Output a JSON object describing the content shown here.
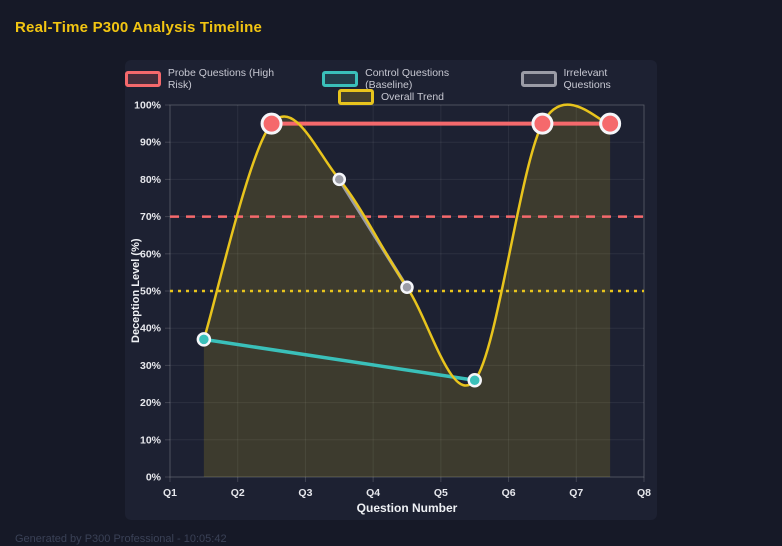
{
  "page": {
    "title": "Real-Time P300 Analysis Timeline",
    "footer": "Generated by P300 Professional - 10:05:42"
  },
  "colors": {
    "background": "#161927",
    "panel": "#1d2132",
    "title": "#f2c512",
    "probe_red": "#f5696c",
    "control_teal": "#3ac0ba",
    "irrelevant_gray": "#9b9ca6",
    "trend_yellow": "#e8c41d",
    "point_border": "#f5f6fa",
    "grid": "rgba(255,255,255,0.07)",
    "plot_border": "rgba(255,255,255,0.16)",
    "tick_label": "#e6e7ec"
  },
  "chart_data": {
    "type": "line",
    "title": "Real-Time P300 Analysis Timeline",
    "x": {
      "label": "Question Number",
      "categories": [
        "Q1",
        "Q2",
        "Q3",
        "Q4",
        "Q5",
        "Q6",
        "Q7",
        "Q8"
      ],
      "min": 1,
      "max": 8
    },
    "y": {
      "label": "Deception Level (%)",
      "min": 0,
      "max": 100,
      "tick_step": 10,
      "tick_suffix": "%"
    },
    "grid": true,
    "legend": {
      "position": "top",
      "rows": [
        [
          "Probe Questions (High Risk)",
          "Control Questions (Baseline)",
          "Irrelevant Questions"
        ],
        [
          "Overall Trend"
        ]
      ]
    },
    "series": [
      {
        "name": "Probe Questions (High Risk)",
        "color": "#f5696c",
        "line_width": 4,
        "point_radius": 9.5,
        "smooth": false,
        "points": [
          [
            2.5,
            95
          ],
          [
            6.5,
            95
          ],
          [
            7.5,
            95
          ]
        ]
      },
      {
        "name": "Control Questions (Baseline)",
        "color": "#3ac0ba",
        "line_width": 3.5,
        "point_radius": 6,
        "smooth": false,
        "points": [
          [
            1.5,
            37
          ],
          [
            5.5,
            26
          ]
        ]
      },
      {
        "name": "Irrelevant Questions",
        "color": "#9b9ca6",
        "line_width": 3.5,
        "point_radius": 5.5,
        "smooth": false,
        "points": [
          [
            3.5,
            80
          ],
          [
            4.5,
            51
          ]
        ]
      },
      {
        "name": "Overall Trend",
        "color": "#e8c41d",
        "line_width": 2.5,
        "point_radius": 0,
        "smooth": true,
        "fill": "rgba(232,196,29,0.16)",
        "points": [
          [
            1.5,
            37
          ],
          [
            2.5,
            95
          ],
          [
            3.5,
            80
          ],
          [
            4.5,
            51
          ],
          [
            5.5,
            26
          ],
          [
            6.5,
            95
          ],
          [
            7.5,
            95
          ]
        ]
      }
    ],
    "threshold_lines": [
      {
        "y": 70,
        "color": "#f5696c",
        "style": "dashed"
      },
      {
        "y": 50,
        "color": "#e8c41d",
        "style": "dotted"
      }
    ]
  }
}
